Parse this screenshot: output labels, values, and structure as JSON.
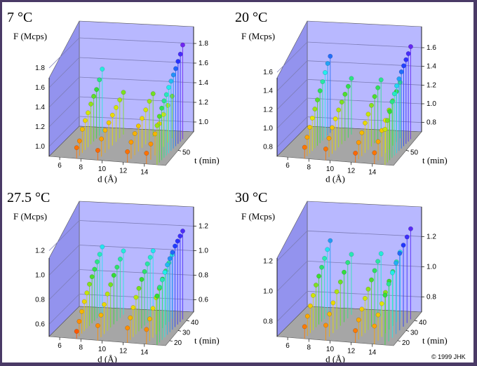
{
  "copyright": "© 1999 JHK",
  "colors": {
    "back_wall": "#b8b8ff",
    "side_wall": "#9393ee",
    "floor": "#a6a6a6",
    "grid_line": "#7d7db8",
    "gradient": [
      "#ff2200",
      "#ff9900",
      "#e6e600",
      "#33dd33",
      "#22eeee",
      "#2233ff",
      "#8822ee"
    ]
  },
  "chart_data": [
    {
      "type": "scatter",
      "title": "7 °C",
      "zlabel": "F (Mcps)",
      "xlabel": "d (Å)",
      "ylabel": "t (min)",
      "zlim": [
        0.9,
        1.9
      ],
      "z_ticks_front": [
        "1.0",
        "1.2",
        "1.4",
        "1.6",
        "1.8"
      ],
      "z_ticks_right": [
        "1.0",
        "1.2",
        "1.4",
        "1.6",
        "1.8"
      ],
      "x_ticks": [
        "6",
        "8",
        "10",
        "12",
        "14"
      ],
      "y_ticks": [
        "50"
      ],
      "series": [
        {
          "d": 7.6,
          "F": [
            1.01,
            1.05,
            1.14,
            1.2,
            1.25,
            1.31,
            1.36,
            1.4,
            1.47,
            1.55
          ]
        },
        {
          "d": 9.6,
          "F": [
            1.0,
            1.08,
            1.13,
            1.17,
            1.21,
            1.25,
            1.29,
            1.33
          ]
        },
        {
          "d": 12.4,
          "F": [
            1.01,
            1.07,
            1.12,
            1.16,
            1.2,
            1.25,
            1.3,
            1.34
          ]
        },
        {
          "d": 14.2,
          "F": [
            1.01,
            1.06,
            1.12,
            1.18,
            1.23,
            1.28,
            1.33
          ]
        },
        {
          "d": 15.2,
          "F": [
            1.3,
            1.37,
            1.43,
            1.48,
            1.52,
            1.57,
            1.61,
            1.65,
            1.69,
            1.74,
            1.79,
            1.86
          ]
        }
      ]
    },
    {
      "type": "scatter",
      "title": "20 °C",
      "zlabel": "F (Mcps)",
      "xlabel": "d (Å)",
      "ylabel": "t (min)",
      "zlim": [
        0.7,
        1.75
      ],
      "z_ticks_front": [
        "0.8",
        "1.0",
        "1.2",
        "1.4",
        "1.6"
      ],
      "z_ticks_right": [
        "0.8",
        "1.0",
        "1.2",
        "1.4",
        "1.6"
      ],
      "x_ticks": [
        "6",
        "8",
        "10",
        "12",
        "14"
      ],
      "y_ticks": [
        "50"
      ],
      "series": [
        {
          "d": 7.6,
          "F": [
            0.82,
            0.9,
            0.98,
            1.05,
            1.12,
            1.19,
            1.26,
            1.33,
            1.4,
            1.47,
            1.52
          ]
        },
        {
          "d": 9.6,
          "F": [
            0.82,
            0.9,
            0.98,
            1.04,
            1.1,
            1.15,
            1.2,
            1.25,
            1.3
          ]
        },
        {
          "d": 12.4,
          "F": [
            0.8,
            0.88,
            0.95,
            1.02,
            1.08,
            1.14,
            1.2,
            1.26,
            1.31
          ]
        },
        {
          "d": 14.2,
          "F": [
            0.82,
            0.9,
            0.98,
            1.05,
            1.12,
            1.18,
            1.24,
            1.3
          ]
        },
        {
          "d": 15.2,
          "F": [
            1.08,
            1.15,
            1.22,
            1.3,
            1.36,
            1.42,
            1.47,
            1.52,
            1.56,
            1.6,
            1.64,
            1.69
          ]
        }
      ]
    },
    {
      "type": "scatter",
      "title": "27.5 °C",
      "zlabel": "F (Mcps)",
      "xlabel": "d (Å)",
      "ylabel": "t (min)",
      "zlim": [
        0.5,
        1.3
      ],
      "z_ticks_front": [
        "0.6",
        "0.8",
        "1.0",
        "1.2"
      ],
      "z_ticks_right": [
        "0.6",
        "0.8",
        "1.0",
        "1.2"
      ],
      "x_ticks": [
        "6",
        "8",
        "10",
        "12",
        "14"
      ],
      "y_ticks": [
        "20",
        "30",
        "40"
      ],
      "series": [
        {
          "d": 7.6,
          "F": [
            0.56,
            0.62,
            0.68,
            0.74,
            0.79,
            0.84,
            0.88,
            0.92,
            0.96,
            1.0,
            1.04
          ]
        },
        {
          "d": 9.6,
          "F": [
            0.62,
            0.68,
            0.74,
            0.8,
            0.85,
            0.9,
            0.94,
            0.98,
            1.02
          ]
        },
        {
          "d": 12.4,
          "F": [
            0.62,
            0.68,
            0.74,
            0.8,
            0.85,
            0.9,
            0.94,
            0.98,
            1.01,
            1.04
          ]
        },
        {
          "d": 14.2,
          "F": [
            0.62,
            0.68,
            0.74,
            0.8,
            0.85,
            0.9,
            0.94,
            0.98,
            1.02
          ]
        },
        {
          "d": 15.2,
          "F": [
            0.9,
            0.95,
            0.99,
            1.03,
            1.07,
            1.1,
            1.13,
            1.16,
            1.18,
            1.2,
            1.22
          ]
        }
      ]
    },
    {
      "type": "scatter",
      "title": "30 °C",
      "zlabel": "F (Mcps)",
      "xlabel": "d (Å)",
      "ylabel": "t (min)",
      "zlim": [
        0.7,
        1.35
      ],
      "z_ticks_front": [
        "0.8",
        "1.0",
        "1.2"
      ],
      "z_ticks_right": [
        "0.8",
        "1.0",
        "1.2"
      ],
      "x_ticks": [
        "6",
        "8",
        "10",
        "12",
        "14"
      ],
      "y_ticks": [
        "20",
        "30",
        "40"
      ],
      "series": [
        {
          "d": 7.6,
          "F": [
            0.78,
            0.83,
            0.88,
            0.93,
            0.98,
            1.02,
            1.06,
            1.1,
            1.14,
            1.18
          ]
        },
        {
          "d": 9.6,
          "F": [
            0.8,
            0.85,
            0.9,
            0.95,
            0.99,
            1.03,
            1.07,
            1.1
          ]
        },
        {
          "d": 12.4,
          "F": [
            0.78,
            0.83,
            0.88,
            0.93,
            0.97,
            1.01,
            1.05,
            1.09,
            1.12
          ]
        },
        {
          "d": 14.2,
          "F": [
            0.82,
            0.87,
            0.92,
            0.97,
            1.02,
            1.06,
            1.1,
            1.14
          ]
        },
        {
          "d": 15.2,
          "F": [
            1.03,
            1.08,
            1.13,
            1.17,
            1.21,
            1.24,
            1.27,
            1.3
          ]
        }
      ]
    }
  ]
}
